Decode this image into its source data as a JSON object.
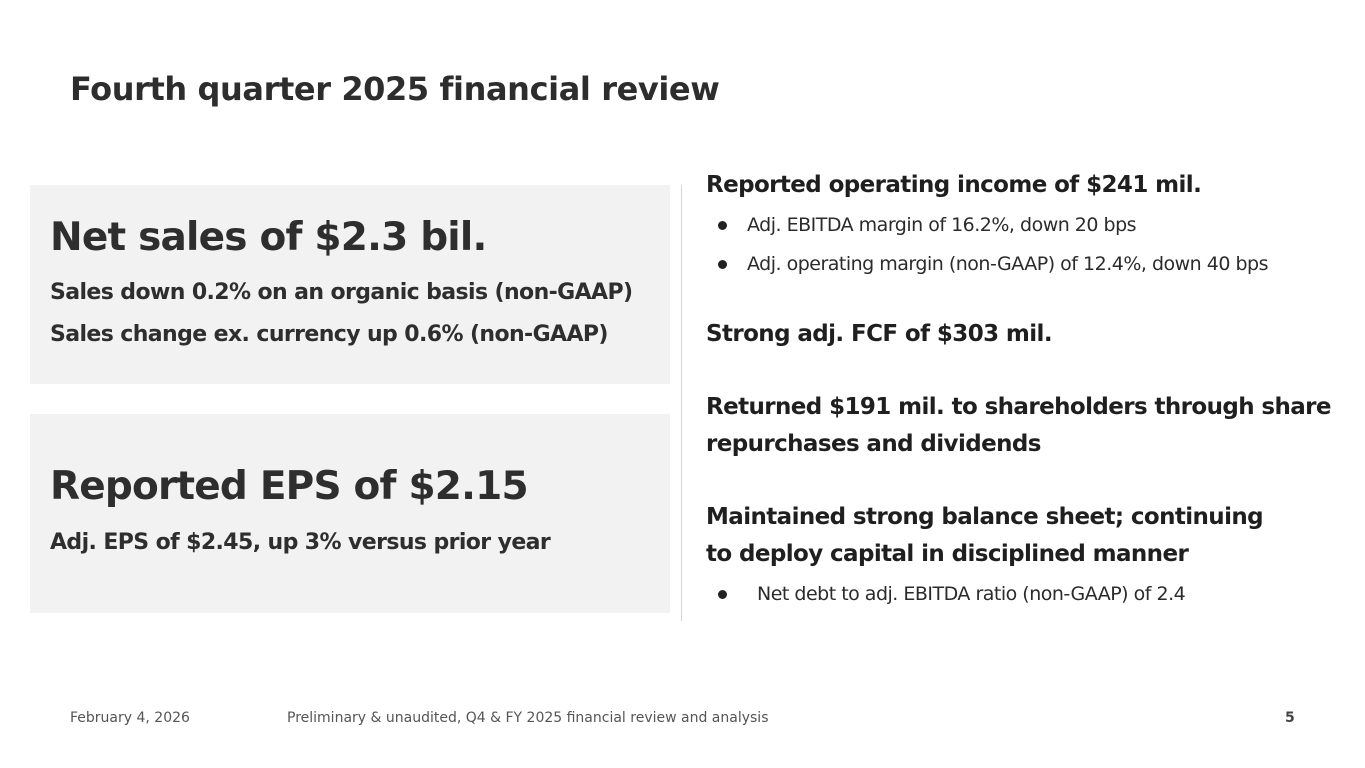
{
  "slide": {
    "title": "Fourth quarter 2025 financial review"
  },
  "sales_card": {
    "headline": "Net sales of $2.3 bil.",
    "lines": [
      "Sales down 0.2% on an organic basis (non-GAAP)",
      "Sales change ex. currency up 0.6% (non-GAAP)"
    ]
  },
  "eps_card": {
    "headline": "Reported EPS of $2.15",
    "lines": [
      "Adj. EPS of $2.45, up 3% versus prior year"
    ]
  },
  "highlights": {
    "operating_income": {
      "title": "Reported operating income of $241 mil.",
      "bullets": [
        "Adj. EBITDA margin of 16.2%, down 20 bps",
        "Adj. operating margin (non-GAAP) of 12.4%, down 40 bps"
      ]
    },
    "fcf": {
      "title": "Strong adj. FCF of $303 mil."
    },
    "returned": {
      "title_lines": [
        "Returned $191 mil. to shareholders through share",
        "repurchases and dividends"
      ]
    },
    "balance_sheet": {
      "title_lines": [
        "Maintained strong balance sheet; continuing",
        "to deploy capital in disciplined manner"
      ],
      "bullets": [
        "Net debt to adj. EBITDA ratio (non-GAAP) of 2.4"
      ]
    }
  },
  "footer": {
    "date": "February 4, 2026",
    "note": "Preliminary & unaudited, Q4 & FY 2025 financial review and analysis",
    "page": "5"
  }
}
